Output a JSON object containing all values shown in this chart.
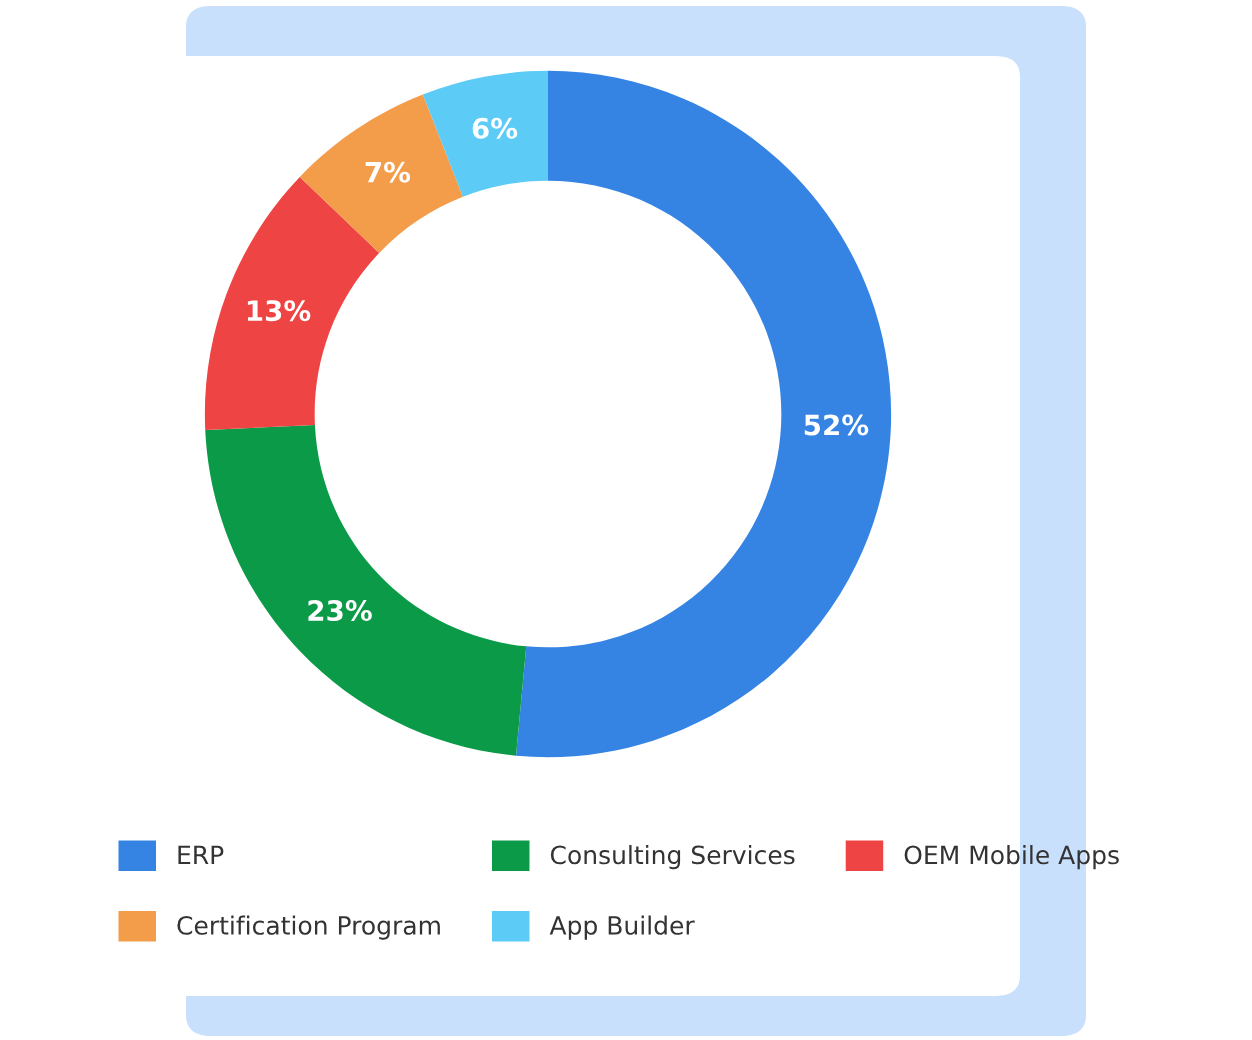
{
  "chart_data": {
    "type": "donut",
    "categories": [
      "ERP",
      "Consulting Services",
      "OEM Mobile Apps",
      "Certification Program",
      "App Builder"
    ],
    "values": [
      52,
      23,
      13,
      7,
      6
    ],
    "colors": [
      "#3584e4",
      "#0a9a48",
      "#ef4444",
      "#f39c4a",
      "#5ccbf5"
    ],
    "value_labels": [
      "52%",
      "23%",
      "13%",
      "7%",
      "6%"
    ],
    "legend": "bottom"
  }
}
